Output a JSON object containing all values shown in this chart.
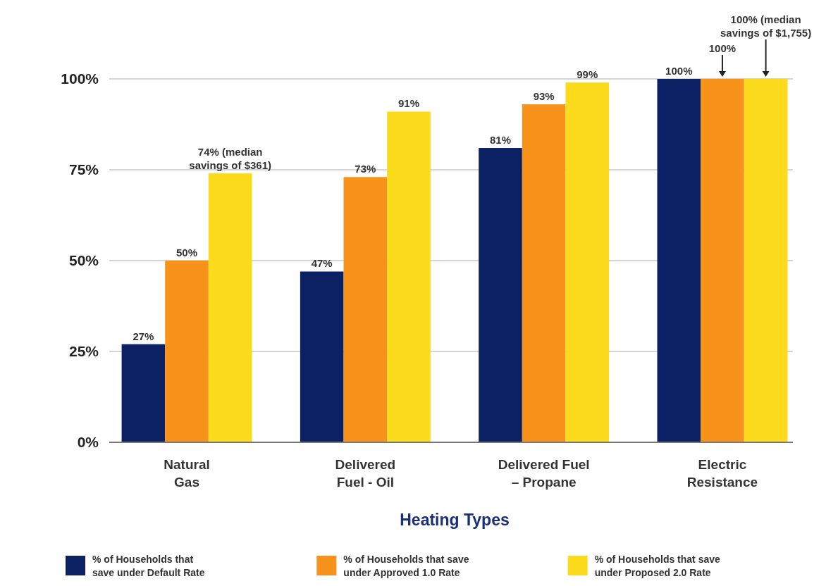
{
  "chart_data": {
    "type": "bar",
    "xlabel": "Heating Types",
    "categories": [
      "Natural Gas",
      "Delivered Fuel - Oil",
      "Delivered Fuel – Propane",
      "Electric Resistance"
    ],
    "series": [
      {
        "name": "% of Households that save under Default Rate",
        "color": "#0c2064",
        "values": [
          27,
          47,
          81,
          100
        ],
        "value_labels": [
          "27%",
          "47%",
          "81%",
          "100%"
        ]
      },
      {
        "name": "% of Households that save under Approved 1.0 Rate",
        "color": "#f7931a",
        "values": [
          50,
          73,
          93,
          100
        ],
        "value_labels": [
          "50%",
          "73%",
          "93%",
          "100%"
        ]
      },
      {
        "name": "% of Households that save under Proposed 2.0 Rate",
        "color": "#fbdb1c",
        "values": [
          74,
          91,
          99,
          100
        ],
        "value_labels": [
          "74% (median savings of $361)",
          "91%",
          "99%",
          "100% (median savings of $1,755)"
        ]
      }
    ],
    "ylim": [
      0,
      100
    ],
    "yticks": [
      {
        "value": 0,
        "label": "0%"
      },
      {
        "value": 25,
        "label": "25%"
      },
      {
        "value": 50,
        "label": "50%"
      },
      {
        "value": 75,
        "label": "75%"
      },
      {
        "value": 100,
        "label": "100%"
      }
    ],
    "grid": "y",
    "legend": "bottom"
  }
}
